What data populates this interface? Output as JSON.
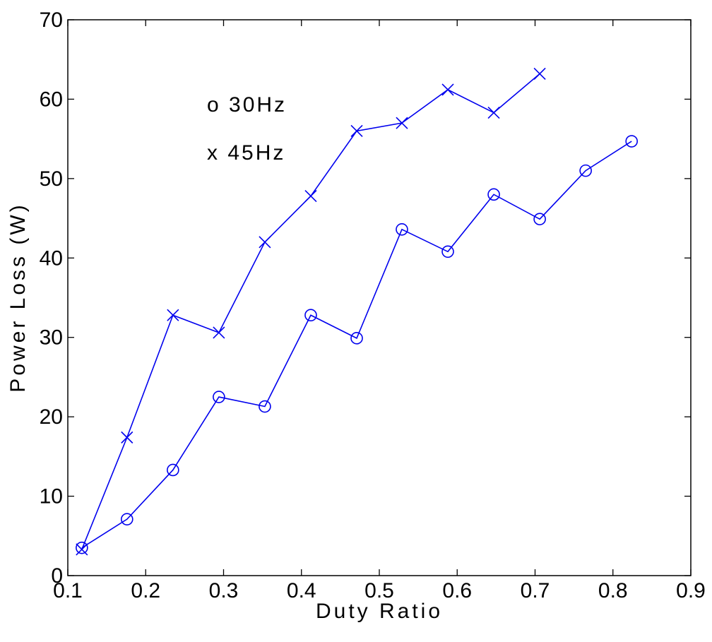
{
  "chart_data": {
    "type": "line",
    "xlabel": "Duty Ratio",
    "ylabel": "Power Loss (W)",
    "xlim": [
      0.1,
      0.9
    ],
    "ylim": [
      0,
      70
    ],
    "xticks": [
      0.1,
      0.2,
      0.3,
      0.4,
      0.5,
      0.6,
      0.7,
      0.8,
      0.9
    ],
    "yticks": [
      0,
      10,
      20,
      30,
      40,
      50,
      60,
      70
    ],
    "grid": false,
    "legend_placement": "top-left",
    "series": [
      {
        "name": "30Hz",
        "marker": "o",
        "legend_text": "o 30Hz",
        "color": "#0000ee",
        "x": [
          0.118,
          0.176,
          0.235,
          0.294,
          0.353,
          0.412,
          0.471,
          0.529,
          0.588,
          0.647,
          0.706,
          0.765,
          0.824
        ],
        "y": [
          3.5,
          7.1,
          13.3,
          22.5,
          21.3,
          32.8,
          29.9,
          43.6,
          40.8,
          48.0,
          44.9,
          51.0,
          54.7
        ]
      },
      {
        "name": "45Hz",
        "marker": "x",
        "legend_text": "x 45Hz",
        "color": "#0000ee",
        "x": [
          0.118,
          0.176,
          0.235,
          0.294,
          0.353,
          0.412,
          0.471,
          0.529,
          0.588,
          0.647,
          0.706
        ],
        "y": [
          3.3,
          17.4,
          32.8,
          30.6,
          42.0,
          47.8,
          56.0,
          57.0,
          61.2,
          58.3,
          63.2
        ]
      }
    ]
  }
}
